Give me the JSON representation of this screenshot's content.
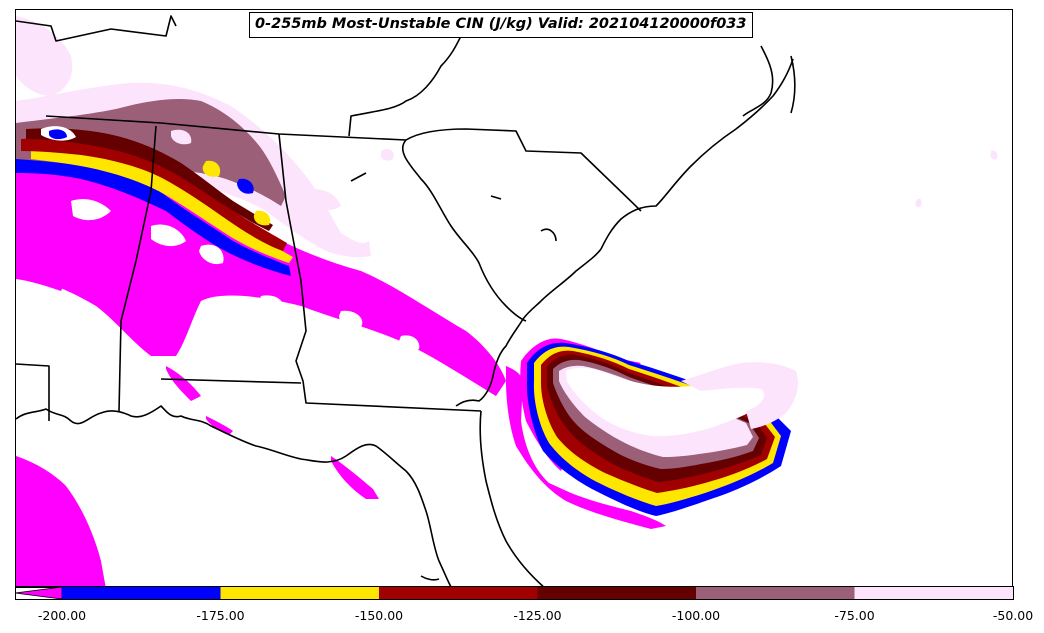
{
  "title": "0-255mb Most-Unstable CIN (J/kg) Valid: 202104120000f033",
  "colorbar": {
    "extend": "min",
    "bins": [
      {
        "from": -200,
        "to": -175,
        "color": "#0000ff"
      },
      {
        "from": -175,
        "to": -150,
        "color": "#ffe600"
      },
      {
        "from": -150,
        "to": -125,
        "color": "#a00000"
      },
      {
        "from": -125,
        "to": -100,
        "color": "#640000"
      },
      {
        "from": -100,
        "to": -75,
        "color": "#9b5f78"
      },
      {
        "from": -75,
        "to": -50,
        "color": "#fde4fd"
      }
    ],
    "below_min_color": "#ff00ff",
    "ticks": [
      "-200.00",
      "-175.00",
      "-150.00",
      "-125.00",
      "-100.00",
      "-75.00",
      "-50.00"
    ]
  },
  "colors": {
    "magenta": "#ff00ff",
    "blue": "#0000ff",
    "yellow": "#ffe600",
    "red": "#a00000",
    "darkred": "#640000",
    "mauve": "#9b5f78",
    "pink": "#fde4fd",
    "white": "#ffffff",
    "boundary": "#000000"
  }
}
